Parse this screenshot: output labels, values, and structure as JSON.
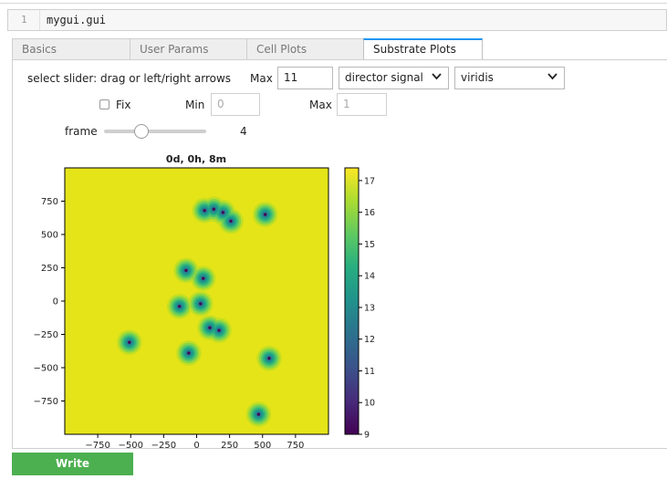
{
  "cell": {
    "line_number": "1",
    "code": "mygui.gui"
  },
  "tabs": [
    {
      "label": "Basics"
    },
    {
      "label": "User Params"
    },
    {
      "label": "Cell Plots"
    },
    {
      "label": "Substrate Plots"
    }
  ],
  "active_tab": "Substrate Plots",
  "controls": {
    "instruction": "select slider: drag or left/right arrows",
    "max_label": "Max",
    "max_value": "11",
    "field_select": "director signal",
    "colormap_select": "viridis",
    "fix_label": "Fix",
    "fix_checked": false,
    "min2_label": "Min",
    "min2_value": "0",
    "max2_label": "Max",
    "max2_value": "1",
    "frame_label": "frame",
    "frame_value": "4",
    "frame_max": "11"
  },
  "chart_data": {
    "type": "heatmap",
    "title": "0d, 0h, 8m",
    "xlabel": "",
    "ylabel": "",
    "xlim": [
      -1000,
      1000
    ],
    "ylim": [
      -1000,
      1000
    ],
    "xticks": [
      "−750",
      "−500",
      "−250",
      "0",
      "250",
      "500",
      "750"
    ],
    "xtick_values": [
      -750,
      -500,
      -250,
      0,
      250,
      500,
      750
    ],
    "yticks": [
      "750",
      "500",
      "250",
      "0",
      "−250",
      "−500",
      "−750"
    ],
    "ytick_values": [
      750,
      500,
      250,
      0,
      -250,
      -500,
      -750
    ],
    "colorbar": {
      "min": 9,
      "max": 17.4,
      "ticks": [
        "17",
        "16",
        "15",
        "14",
        "13",
        "12",
        "11",
        "10",
        "9"
      ],
      "tick_values": [
        17,
        16,
        15,
        14,
        13,
        12,
        11,
        10,
        9
      ],
      "colormap": "viridis"
    },
    "sources": [
      {
        "x": 60,
        "y": 680
      },
      {
        "x": 130,
        "y": 690
      },
      {
        "x": 200,
        "y": 665
      },
      {
        "x": 260,
        "y": 600
      },
      {
        "x": 520,
        "y": 650
      },
      {
        "x": -80,
        "y": 230
      },
      {
        "x": 50,
        "y": 170
      },
      {
        "x": -130,
        "y": -40
      },
      {
        "x": 30,
        "y": -20
      },
      {
        "x": 100,
        "y": -200
      },
      {
        "x": 170,
        "y": -220
      },
      {
        "x": -60,
        "y": -390
      },
      {
        "x": -510,
        "y": -310
      },
      {
        "x": 550,
        "y": -430
      },
      {
        "x": 470,
        "y": -850
      }
    ],
    "grid": false
  },
  "buttons": {
    "write": "Write"
  },
  "colors": {
    "write_bg": "#4caf50",
    "tab_accent": "#2196f3"
  }
}
